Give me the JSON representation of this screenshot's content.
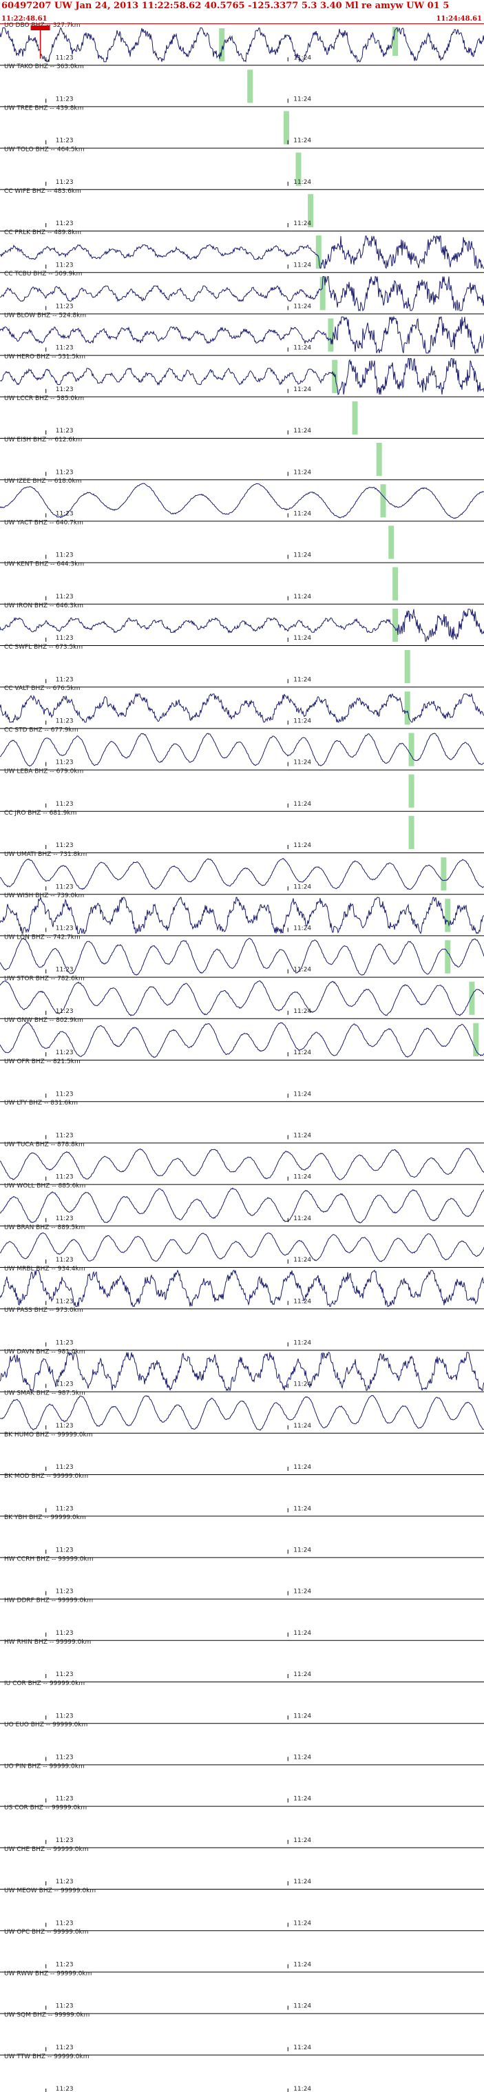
{
  "header": {
    "title_line": "60497207 UW Jan 24, 2013 11:22:58.62   40.5765 -125.3377  5.3 3.40 Ml re amyw UW 01   5",
    "start_time": "11:22:48.61",
    "end_time": "11:24:48.61"
  },
  "colors": {
    "trace": "#1a1a6e",
    "pick": "#9ad99a",
    "header": "#d40000",
    "event_marker": "#d40000"
  },
  "time_labels": [
    "11:23",
    "11:24"
  ],
  "chart_data": {
    "type": "line",
    "title": "",
    "x_range": [
      "11:22:48.61",
      "11:24:48.61"
    ],
    "x_ticks": [
      "11:23",
      "11:24"
    ],
    "note_traces": "seismograms per channel; pick = arrival marker (seconds after 11:22:48.61)",
    "stations": [
      {
        "label": "UO DBO BHZ -- 327.7km",
        "amp": 0.85,
        "period": 7,
        "pick": 55,
        "second_pick": 98,
        "wave": "noise"
      },
      {
        "label": "UW TAKO BHZ -- 363.0km",
        "amp": 0,
        "pick": 62,
        "wave": "flat"
      },
      {
        "label": "UW TREE BHZ -- 439.8km",
        "amp": 0,
        "pick": 71,
        "wave": "flat"
      },
      {
        "label": "UW TOLO BHZ -- 464.5km",
        "amp": 0,
        "pick": 74,
        "wave": "flat"
      },
      {
        "label": "CC WIFE BHZ -- 483.6km",
        "amp": 0,
        "pick": 77,
        "wave": "flat"
      },
      {
        "label": "CC PRLK BHZ -- 489.8km",
        "amp": 0.8,
        "period": 8,
        "pick": 79,
        "wave": "quake"
      },
      {
        "label": "CC TCBU BHZ -- 509.9km",
        "amp": 0.85,
        "period": 6,
        "pick": 80,
        "wave": "quake"
      },
      {
        "label": "UW BLOW BHZ -- 524.8km",
        "amp": 0.9,
        "period": 6,
        "pick": 82,
        "wave": "quake"
      },
      {
        "label": "UW HERO BHZ -- 531.5km",
        "amp": 0.9,
        "period": 5,
        "pick": 83,
        "wave": "quake"
      },
      {
        "label": "UW LCCR BHZ -- 585.0km",
        "amp": 0,
        "pick": 88,
        "wave": "flat"
      },
      {
        "label": "UW EISH BHZ -- 612.6km",
        "amp": 0,
        "pick": 94,
        "wave": "flat"
      },
      {
        "label": "UW IZEE BHZ -- 618.0km",
        "amp": 0.9,
        "period": 14,
        "pick": 95,
        "wave": "swell"
      },
      {
        "label": "UW YACT BHZ -- 640.7km",
        "amp": 0,
        "pick": 97,
        "wave": "flat"
      },
      {
        "label": "UW KENT BHZ -- 644.3km",
        "amp": 0,
        "pick": 98,
        "wave": "flat"
      },
      {
        "label": "UW IRON BHZ -- 646.3km",
        "amp": 0.8,
        "period": 7,
        "pick": 98,
        "wave": "quake"
      },
      {
        "label": "CC SWFL BHZ -- 673.5km",
        "amp": 0,
        "pick": 101,
        "wave": "flat"
      },
      {
        "label": "CC VALT BHZ -- 676.5km",
        "amp": 0.7,
        "period": 9,
        "pick": 101,
        "wave": "noise"
      },
      {
        "label": "CC STD BHZ -- 677.9km",
        "amp": 0.85,
        "period": 8,
        "pick": 102,
        "wave": "swell"
      },
      {
        "label": "UW LEBA BHZ -- 679.0km",
        "amp": 0,
        "pick": 102,
        "wave": "flat"
      },
      {
        "label": "CC JRO BHZ -- 681.9km",
        "amp": 0,
        "pick": 102,
        "wave": "flat"
      },
      {
        "label": "UW UMATI BHZ -- 731.8km",
        "amp": 0.8,
        "period": 9,
        "pick": 110,
        "wave": "swell"
      },
      {
        "label": "UW WISH BHZ -- 739.0km",
        "amp": 0.9,
        "period": 7,
        "pick": 111,
        "wave": "noise"
      },
      {
        "label": "UW LON BHZ -- 742.7km",
        "amp": 0.95,
        "period": 8,
        "pick": 111,
        "wave": "swell"
      },
      {
        "label": "UW STOR BHZ -- 782.6km",
        "amp": 0.9,
        "period": 9,
        "pick": 117,
        "wave": "swell"
      },
      {
        "label": "UW GNW BHZ -- 802.9km",
        "amp": 0.9,
        "period": 9,
        "pick": 118,
        "wave": "swell"
      },
      {
        "label": "UW OFR BHZ -- 821.5km",
        "amp": 0,
        "wave": "flat"
      },
      {
        "label": "UW LTY BHZ -- 831.6km",
        "amp": 0,
        "wave": "flat"
      },
      {
        "label": "UW TUCA BHZ -- 878.8km",
        "amp": 0.8,
        "period": 9,
        "wave": "swell"
      },
      {
        "label": "UW WOLL BHZ -- 885.6km",
        "amp": 0.9,
        "period": 9,
        "wave": "swell"
      },
      {
        "label": "UW BRAN BHZ -- 889.5km",
        "amp": 0.75,
        "period": 8,
        "wave": "swell"
      },
      {
        "label": "UW MRBL BHZ -- 934.4km",
        "amp": 0.9,
        "period": 7,
        "wave": "noise"
      },
      {
        "label": "UW PASS BHZ -- 973.0km",
        "amp": 0,
        "wave": "flat"
      },
      {
        "label": "UW DAVN BHZ -- 981.0km",
        "amp": 0.95,
        "period": 7,
        "wave": "noise"
      },
      {
        "label": "UW SMAK BHZ -- 987.5km",
        "amp": 0.9,
        "period": 8,
        "wave": "swell"
      },
      {
        "label": "BK HUMO BHZ -- 99999.0km",
        "amp": 0,
        "wave": "flat"
      },
      {
        "label": "BK MOD BHZ -- 99999.0km",
        "amp": 0,
        "wave": "flat"
      },
      {
        "label": "BK YBH BHZ -- 99999.0km",
        "amp": 0,
        "wave": "flat"
      },
      {
        "label": "HW CCRH BHZ -- 99999.0km",
        "amp": 0,
        "wave": "flat"
      },
      {
        "label": "HW DDRF BHZ -- 99999.0km",
        "amp": 0,
        "wave": "flat"
      },
      {
        "label": "HW RHIN BHZ -- 99999.0km",
        "amp": 0,
        "wave": "flat"
      },
      {
        "label": "IU COR BHZ -- 99999.0km",
        "amp": 0,
        "wave": "flat"
      },
      {
        "label": "UO EUO BHZ -- 99999.0km",
        "amp": 0,
        "wave": "flat"
      },
      {
        "label": "UO PIN BHZ -- 99999.0km",
        "amp": 0,
        "wave": "flat"
      },
      {
        "label": "US COR BHZ -- 99999.0km",
        "amp": 0,
        "wave": "flat"
      },
      {
        "label": "UW CHE BHZ -- 99999.0km",
        "amp": 0,
        "wave": "flat"
      },
      {
        "label": "UW MEOW BHZ -- 99999.0km",
        "amp": 0,
        "wave": "flat"
      },
      {
        "label": "UW OPC BHZ -- 99999.0km",
        "amp": 0,
        "wave": "flat"
      },
      {
        "label": "UW RWW BHZ -- 99999.0km",
        "amp": 0,
        "wave": "flat"
      },
      {
        "label": "UW SQM BHZ -- 99999.0km",
        "amp": 0,
        "wave": "flat"
      },
      {
        "label": "UW TTW BHZ -- 99999.0km",
        "amp": 0,
        "wave": "flat"
      }
    ]
  }
}
